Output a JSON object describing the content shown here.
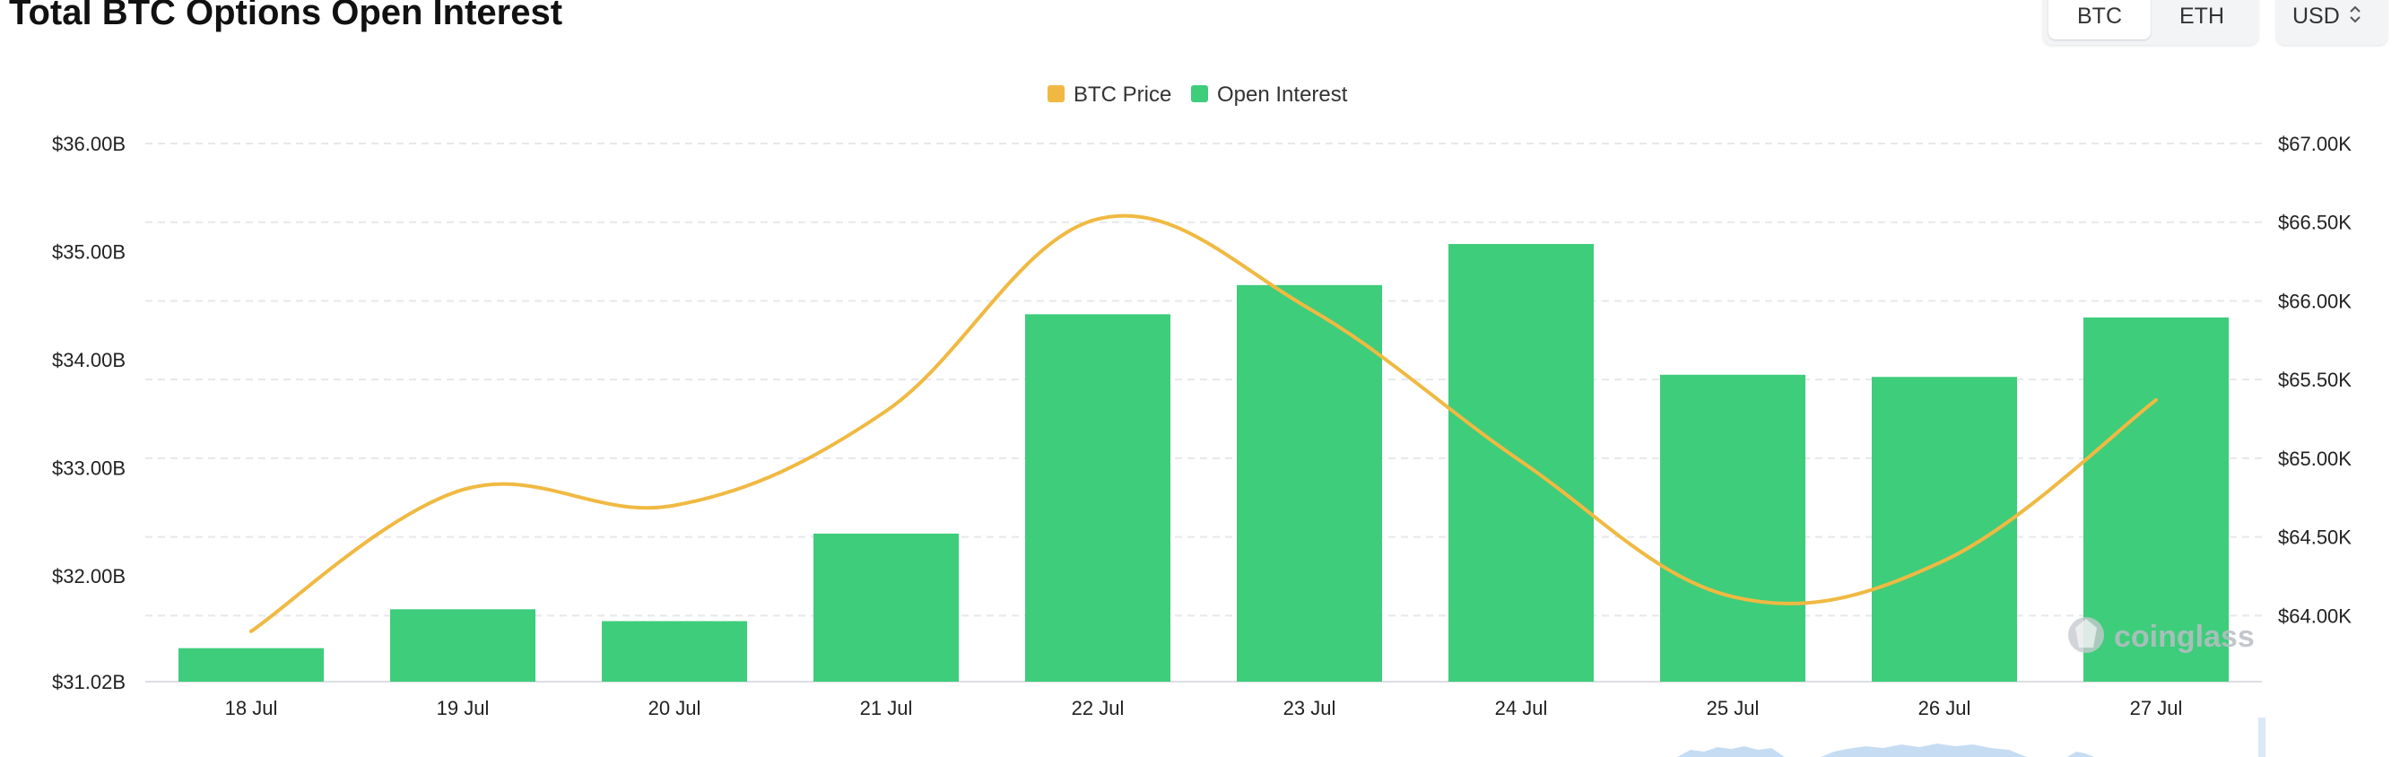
{
  "header": {
    "title": "Total BTC Options Open Interest",
    "asset_toggle": [
      {
        "label": "BTC",
        "active": true
      },
      {
        "label": "ETH",
        "active": false
      }
    ],
    "currency": {
      "label": "USD",
      "icon": "chevron-up-down-icon"
    }
  },
  "watermark": {
    "label": "coinglass",
    "icon": "coinglass-logo-icon"
  },
  "colors": {
    "btc_price": "#f0b942",
    "open_interest": "#3ecd7b",
    "grid": "#e6e8eb"
  },
  "chart_data": {
    "type": "bar",
    "categories": [
      "18 Jul",
      "19 Jul",
      "20 Jul",
      "21 Jul",
      "22 Jul",
      "23 Jul",
      "24 Jul",
      "25 Jul",
      "26 Jul",
      "27 Jul"
    ],
    "series": [
      {
        "name": "Open Interest",
        "type": "bar",
        "axis": "left",
        "values": [
          31.33,
          31.69,
          31.58,
          32.39,
          34.42,
          34.69,
          35.07,
          33.86,
          33.84,
          34.39
        ]
      },
      {
        "name": "BTC Price",
        "type": "line",
        "axis": "right",
        "values": [
          63.9,
          64.8,
          64.7,
          65.3,
          66.52,
          65.95,
          64.98,
          64.12,
          64.35,
          65.37
        ]
      }
    ],
    "y_left": {
      "ticks": [
        31.02,
        32,
        33,
        34,
        35,
        36
      ],
      "tick_labels": [
        "$31.02B",
        "$32.00B",
        "$33.00B",
        "$34.00B",
        "$35.00B",
        "$36.00B"
      ],
      "range": [
        31.02,
        36.0
      ]
    },
    "y_right": {
      "ticks": [
        64.0,
        64.5,
        65.0,
        65.5,
        66.0,
        66.5,
        67.0
      ],
      "tick_labels": [
        "$64.00K",
        "$64.50K",
        "$65.00K",
        "$65.50K",
        "$66.00K",
        "$66.50K",
        "$67.00K"
      ],
      "range": [
        63.58,
        67.0
      ]
    },
    "grid": true,
    "legend_position": "top-center",
    "legend": [
      "BTC Price",
      "Open Interest"
    ]
  }
}
